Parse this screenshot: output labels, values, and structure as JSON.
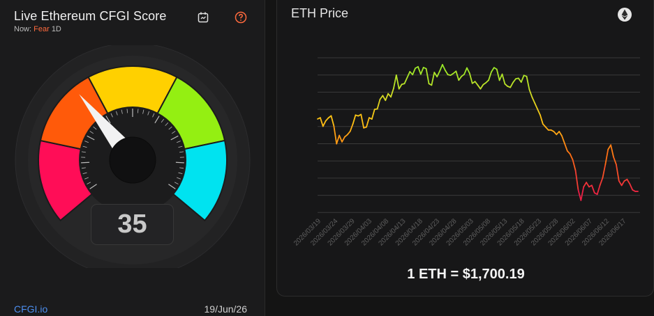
{
  "gauge_panel": {
    "title": "Live Ethereum CFGI Score",
    "now_label": "Now:",
    "sentiment": "Fear",
    "timeframe": "1D",
    "score": "35",
    "score_value": 35,
    "footer_link": "CFGI.io",
    "date": "19/Jun/26",
    "icons": [
      "calendar-icon",
      "help-icon"
    ],
    "colors": {
      "extreme_fear": "#ff0d57",
      "fear": "#ff5a0a",
      "neutral": "#ffd000",
      "greed": "#94ef12",
      "extreme_greed": "#00e3f0",
      "sentiment_text": "#ff6a3d",
      "link": "#4d8ff0"
    }
  },
  "price_panel": {
    "title": "ETH Price",
    "icon": "ethereum-icon",
    "price_text": "1 ETH = $1,700.19"
  },
  "chart_data": {
    "type": "line",
    "xlabel": "",
    "ylabel": "",
    "grid": true,
    "y_axis_labels_shown": false,
    "line_colors": "gradient green-yellow-orange-red by sentiment",
    "x_tick_labels": [
      "2026/03/19",
      "2026/03/24",
      "2026/03/29",
      "2026/04/03",
      "2026/04/08",
      "2026/04/13",
      "2026/04/18",
      "2026/04/23",
      "2026/04/28",
      "2026/05/03",
      "2026/05/08",
      "2026/05/13",
      "2026/05/18",
      "2026/05/23",
      "2026/05/28",
      "2026/06/02",
      "2026/06/07",
      "2026/06/12",
      "2026/06/17"
    ],
    "y_relative": [
      0.554,
      0.562,
      0.505,
      0.541,
      0.561,
      0.575,
      0.507,
      0.388,
      0.444,
      0.401,
      0.434,
      0.449,
      0.471,
      0.52,
      0.58,
      0.574,
      0.584,
      0.494,
      0.5,
      0.562,
      0.553,
      0.618,
      0.621,
      0.685,
      0.71,
      0.678,
      0.723,
      0.701,
      0.758,
      0.847,
      0.755,
      0.785,
      0.79,
      0.83,
      0.87,
      0.85,
      0.893,
      0.903,
      0.853,
      0.898,
      0.89,
      0.79,
      0.78,
      0.865,
      0.836,
      0.874,
      0.917,
      0.879,
      0.85,
      0.846,
      0.858,
      0.873,
      0.813,
      0.838,
      0.852,
      0.895,
      0.859,
      0.792,
      0.804,
      0.78,
      0.755,
      0.783,
      0.796,
      0.813,
      0.868,
      0.897,
      0.886,
      0.812,
      0.853,
      0.788,
      0.772,
      0.765,
      0.798,
      0.822,
      0.826,
      0.8,
      0.845,
      0.838,
      0.75,
      0.7,
      0.66,
      0.62,
      0.58,
      0.52,
      0.5,
      0.48,
      0.48,
      0.47,
      0.45,
      0.47,
      0.44,
      0.39,
      0.34,
      0.32,
      0.28,
      0.21,
      0.08,
      0.01,
      0.1,
      0.13,
      0.1,
      0.11,
      0.06,
      0.05,
      0.11,
      0.16,
      0.25,
      0.35,
      0.38,
      0.3,
      0.25,
      0.14,
      0.11,
      0.14,
      0.15,
      0.12,
      0.08,
      0.07,
      0.07
    ]
  }
}
